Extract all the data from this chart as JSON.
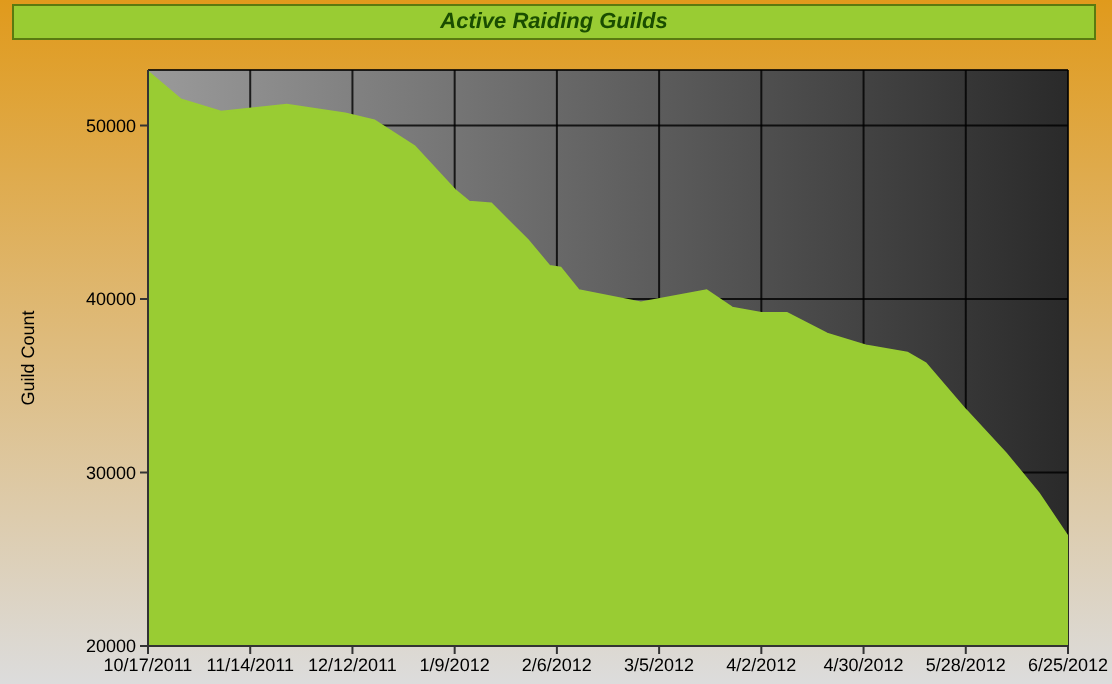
{
  "chart_data": {
    "type": "area",
    "title": "Active Raiding Guilds",
    "ylabel": "Guild Count",
    "x": [
      "2011-10-17",
      "2011-10-26",
      "2011-11-06",
      "2011-11-24",
      "2011-12-10",
      "2011-12-18",
      "2011-12-29",
      "2012-01-09",
      "2012-01-13",
      "2012-01-19",
      "2012-01-29",
      "2012-02-04",
      "2012-02-07",
      "2012-02-12",
      "2012-02-29",
      "2012-03-18",
      "2012-03-25",
      "2012-04-02",
      "2012-04-09",
      "2012-04-20",
      "2012-05-01",
      "2012-05-12",
      "2012-05-17",
      "2012-05-28",
      "2012-06-08",
      "2012-06-17",
      "2012-06-25"
    ],
    "series": [
      {
        "color": "#99cc33",
        "values": [
          53100,
          51500,
          50800,
          51200,
          50700,
          50300,
          48800,
          46300,
          45600,
          45500,
          43400,
          41900,
          41800,
          40500,
          39800,
          40500,
          39500,
          39200,
          39200,
          38000,
          37300,
          36900,
          36300,
          33600,
          31100,
          28800,
          26300
        ]
      }
    ],
    "xlim": [
      "2011-10-17",
      "2012-06-25"
    ],
    "xticks": [
      {
        "value": "2011-10-17",
        "label": "10/17/2011"
      },
      {
        "value": "2011-11-14",
        "label": "11/14/2011"
      },
      {
        "value": "2011-12-12",
        "label": "12/12/2011"
      },
      {
        "value": "2012-01-09",
        "label": "1/9/2012"
      },
      {
        "value": "2012-02-06",
        "label": "2/6/2012"
      },
      {
        "value": "2012-03-05",
        "label": "3/5/2012"
      },
      {
        "value": "2012-04-02",
        "label": "4/2/2012"
      },
      {
        "value": "2012-04-30",
        "label": "4/30/2012"
      },
      {
        "value": "2012-05-28",
        "label": "5/28/2012"
      },
      {
        "value": "2012-06-25",
        "label": "6/25/2012"
      }
    ],
    "ylim": [
      20000,
      53200
    ],
    "yticks": [
      20000,
      30000,
      40000,
      50000
    ],
    "grid": true,
    "legend": false
  }
}
